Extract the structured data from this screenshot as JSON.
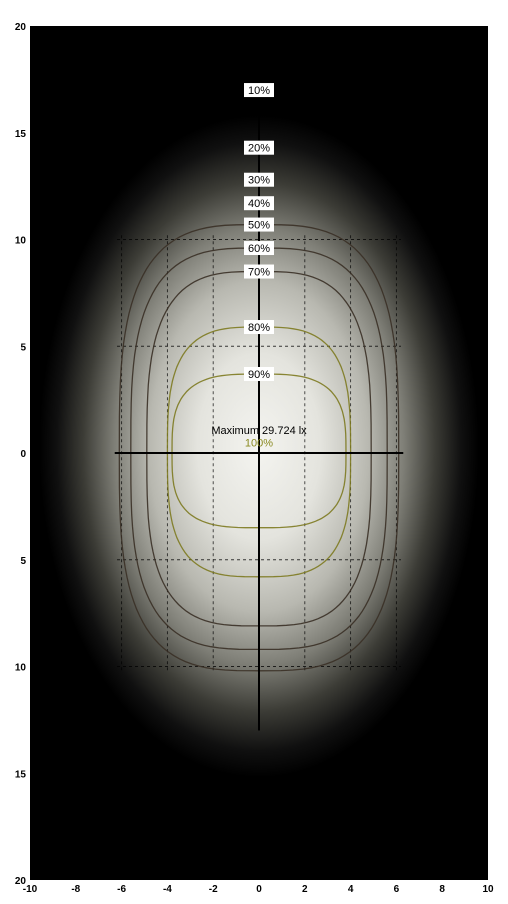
{
  "chart_data": {
    "type": "contour",
    "title": "",
    "xlabel": "",
    "ylabel": "",
    "xlim": [
      -10,
      10
    ],
    "ylim": [
      -20,
      20
    ],
    "x_ticks": [
      "-10",
      "-8",
      "-6",
      "-4",
      "-2",
      "0",
      "2",
      "4",
      "6",
      "8",
      "10"
    ],
    "y_ticks": [
      "20",
      "15",
      "10",
      "5",
      "0",
      "5",
      "10",
      "15",
      "20"
    ],
    "grid": "dashed, x -6 to 6 and y -10 to 10",
    "maximum_label": "Maximum 29.724 lx",
    "max_point": {
      "x": 0,
      "y": 0
    },
    "max_percent_label": "100%",
    "contours": [
      {
        "label": "10%",
        "label_y": 17.0,
        "rx": 9.0,
        "ry_top": 17.0,
        "ry_bottom": 17.0,
        "visible": false
      },
      {
        "label": "20%",
        "label_y": 14.3,
        "rx": 8.2,
        "ry_top": 14.3,
        "ry_bottom": 14.3,
        "visible": false
      },
      {
        "label": "30%",
        "label_y": 12.8,
        "rx": 7.4,
        "ry_top": 12.8,
        "ry_bottom": 12.8,
        "visible": false
      },
      {
        "label": "40%",
        "label_y": 11.7,
        "rx": 6.6,
        "ry_top": 11.7,
        "ry_bottom": 11.7,
        "visible": false
      },
      {
        "label": "50%",
        "label_y": 10.7,
        "rx": 6.1,
        "ry_top": 10.7,
        "ry_bottom": 10.2,
        "visible": true
      },
      {
        "label": "60%",
        "label_y": 9.6,
        "rx": 5.6,
        "ry_top": 9.6,
        "ry_bottom": 9.2,
        "visible": true
      },
      {
        "label": "70%",
        "label_y": 8.5,
        "rx": 4.9,
        "ry_top": 8.5,
        "ry_bottom": 8.1,
        "visible": true
      },
      {
        "label": "80%",
        "label_y": 5.9,
        "rx": 4.0,
        "ry_top": 5.9,
        "ry_bottom": 5.8,
        "visible": true
      },
      {
        "label": "90%",
        "label_y": 3.7,
        "rx": 3.8,
        "ry_top": 3.7,
        "ry_bottom": 3.5,
        "visible": true
      }
    ],
    "colors": {
      "background": "#000000",
      "center": "#f4f4f0",
      "axis": "#000000",
      "contour_dark": "#3a3026",
      "contour_olive": "#7d7a20",
      "label_bg": "#ffffff",
      "max_percent_color": "#8a8a20"
    }
  }
}
